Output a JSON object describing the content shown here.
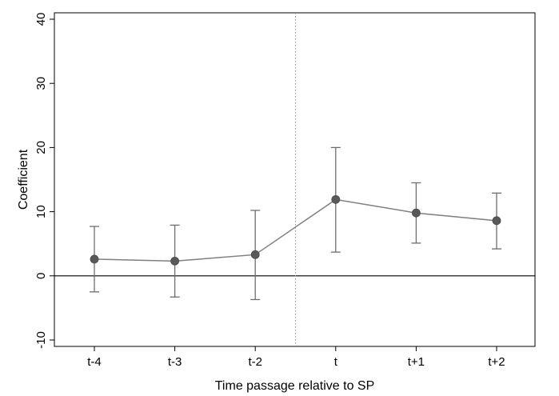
{
  "chart_data": {
    "type": "line",
    "title": "",
    "xlabel": "Time passage relative to SP",
    "ylabel": "Coefficient",
    "categories": [
      "t-4",
      "t-3",
      "t-2",
      "t",
      "t+1",
      "t+2"
    ],
    "series": [
      {
        "name": "Coefficient",
        "values": [
          2.6,
          2.3,
          3.3,
          11.9,
          9.8,
          8.6
        ],
        "ci_low": [
          -2.5,
          -3.3,
          -3.7,
          3.7,
          5.1,
          4.2
        ],
        "ci_high": [
          7.7,
          7.9,
          10.2,
          20.0,
          14.5,
          12.9
        ]
      }
    ],
    "yticks": [
      -10,
      0,
      10,
      20,
      30,
      40
    ],
    "ytick_labels": [
      "-10",
      "0",
      "10",
      "20",
      "30",
      "40"
    ],
    "ylim": [
      -11,
      41
    ],
    "reference_line_y": 0,
    "event_line_between": [
      "t-2",
      "t"
    ],
    "grid": false,
    "colors": {
      "marker": "#595959",
      "line": "#7f7f7f",
      "errorbar": "#6e6e6e",
      "axis": "#000000",
      "zero_line": "#000000",
      "event_line": "#8a8a8a"
    }
  }
}
